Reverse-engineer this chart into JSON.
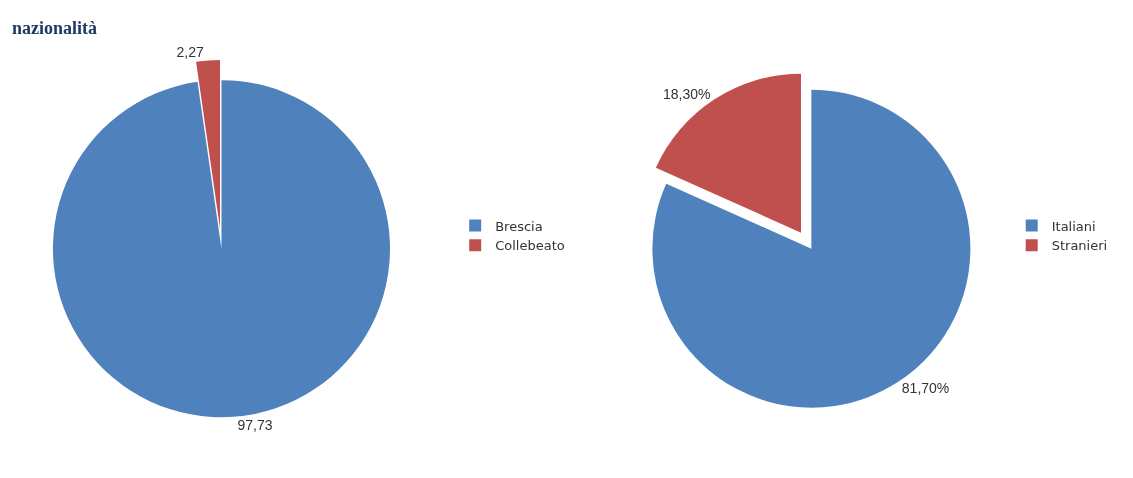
{
  "chart_data": [
    {
      "type": "pie",
      "title": "nazionalità",
      "categories": [
        "Brescia",
        "Collebeato"
      ],
      "values": [
        97.73,
        2.27
      ],
      "value_labels": [
        "97,73",
        "2,27"
      ],
      "colors": [
        "#4f81bd",
        "#c0504d"
      ],
      "legend": "right"
    },
    {
      "type": "pie",
      "categories": [
        "Italiani",
        "Stranieri"
      ],
      "values": [
        81.7,
        18.3
      ],
      "value_labels": [
        "81,70%",
        "18,30%"
      ],
      "colors": [
        "#4f81bd",
        "#c0504d"
      ],
      "legend": "right"
    }
  ]
}
